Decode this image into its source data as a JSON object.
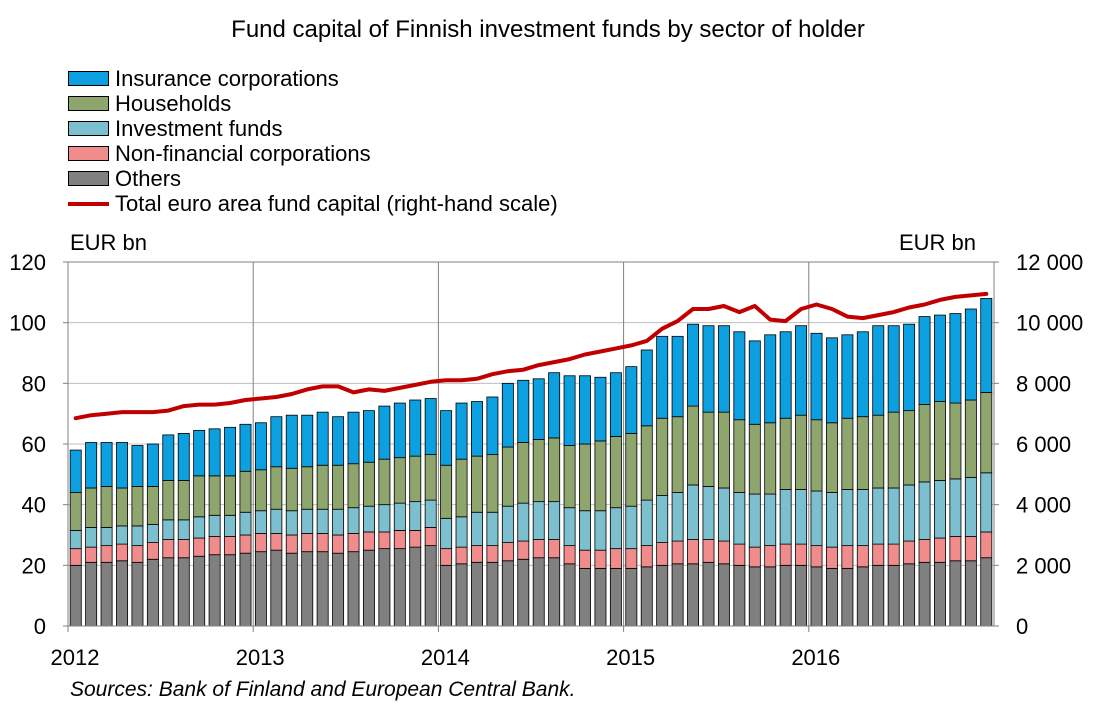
{
  "chart_data": {
    "type": "bar",
    "stacked": true,
    "title": "Fund capital of Finnish investment funds by sector of holder",
    "ylabel_left": "EUR bn",
    "ylabel_right": "EUR bn",
    "ylim_left": [
      0,
      120
    ],
    "ylim_right": [
      0,
      12000
    ],
    "yticks_left": [
      "0",
      "20",
      "40",
      "60",
      "80",
      "100",
      "120"
    ],
    "yticks_right": [
      "0",
      "2 000",
      "4 000",
      "6 000",
      "8 000",
      "10 000",
      "12 000"
    ],
    "xticks": [
      "2012",
      "2013",
      "2014",
      "2015",
      "2016"
    ],
    "grid": true,
    "legend_position": "top-left",
    "source": "Sources: Bank of Finland and European Central Bank.",
    "colors": {
      "Others": "#808080",
      "Non-financial corporations": "#f08c8c",
      "Investment funds": "#7cc0d0",
      "Households": "#8ea66e",
      "Insurance corporations": "#0ca0e0",
      "Total euro area fund capital (right-hand scale)": "#c00000"
    },
    "legend": [
      {
        "label": "Insurance corporations",
        "key": "Insurance corporations",
        "kind": "box"
      },
      {
        "label": "Households",
        "key": "Households",
        "kind": "box"
      },
      {
        "label": "Investment funds",
        "key": "Investment funds",
        "kind": "box"
      },
      {
        "label": "Non-financial corporations",
        "key": "Non-financial corporations",
        "kind": "box"
      },
      {
        "label": "Others",
        "key": "Others",
        "kind": "box"
      },
      {
        "label": "Total euro area fund capital (right-hand scale)",
        "key": "Total euro area fund capital (right-hand scale)",
        "kind": "line"
      }
    ],
    "x": [
      "2012-01",
      "2012-02",
      "2012-03",
      "2012-04",
      "2012-05",
      "2012-06",
      "2012-07",
      "2012-08",
      "2012-09",
      "2012-10",
      "2012-11",
      "2012-12",
      "2013-01",
      "2013-02",
      "2013-03",
      "2013-04",
      "2013-05",
      "2013-06",
      "2013-07",
      "2013-08",
      "2013-09",
      "2013-10",
      "2013-11",
      "2013-12",
      "2014-01",
      "2014-02",
      "2014-03",
      "2014-04",
      "2014-05",
      "2014-06",
      "2014-07",
      "2014-08",
      "2014-09",
      "2014-10",
      "2014-11",
      "2014-12",
      "2015-01",
      "2015-02",
      "2015-03",
      "2015-04",
      "2015-05",
      "2015-06",
      "2015-07",
      "2015-08",
      "2015-09",
      "2015-10",
      "2015-11",
      "2015-12",
      "2016-01",
      "2016-02",
      "2016-03",
      "2016-04",
      "2016-05",
      "2016-06",
      "2016-07",
      "2016-08",
      "2016-09",
      "2016-10",
      "2016-11",
      "2016-12"
    ],
    "series": [
      {
        "name": "Others",
        "values": [
          20,
          21,
          21,
          21.5,
          21,
          22,
          22.5,
          22.5,
          23,
          23.5,
          23.5,
          24,
          24.5,
          25,
          24,
          24.5,
          24.5,
          24,
          24.5,
          25,
          25.5,
          25.5,
          26,
          26.5,
          20,
          20.5,
          21,
          21,
          21.5,
          22,
          22.5,
          22.5,
          20.5,
          19,
          19,
          19,
          19,
          19.5,
          20,
          20.5,
          20.5,
          21,
          20.5,
          20,
          19.5,
          19.5,
          20,
          20,
          19.5,
          19,
          19,
          19.5,
          20,
          20,
          20.5,
          21,
          21,
          21.5,
          21.5,
          22.5
        ]
      },
      {
        "name": "Non-financial corporations",
        "values": [
          5.5,
          5,
          5.5,
          5.5,
          5.5,
          5.5,
          6,
          6,
          6,
          6,
          6,
          6,
          6,
          5.5,
          6,
          6,
          6,
          6,
          6,
          6,
          5.5,
          6,
          5.5,
          6,
          5.5,
          5.5,
          5.5,
          5.5,
          6,
          6,
          6,
          6,
          6,
          6,
          6,
          6.5,
          6.5,
          7,
          7.5,
          7.5,
          8,
          7.5,
          7.5,
          7,
          6.5,
          7,
          7,
          7,
          7,
          7,
          7.5,
          7,
          7,
          7,
          7.5,
          7.5,
          8,
          8,
          8,
          8.5
        ]
      },
      {
        "name": "Investment funds",
        "values": [
          6,
          6.5,
          6,
          6,
          6.5,
          6,
          6.5,
          6.5,
          7,
          7,
          7,
          7.5,
          7.5,
          8,
          8,
          8,
          8,
          8.5,
          8.5,
          8.5,
          9,
          9,
          9.5,
          9,
          10,
          10,
          11,
          11,
          12,
          12.5,
          12.5,
          12.5,
          12.5,
          13,
          13,
          13.5,
          14,
          15,
          15.5,
          16,
          18,
          17.5,
          17.5,
          17,
          17.5,
          17,
          18,
          18,
          18,
          18,
          18.5,
          18.5,
          18.5,
          18.5,
          18.5,
          19,
          19,
          19,
          19.5,
          19.5
        ]
      },
      {
        "name": "Households",
        "values": [
          12.5,
          13,
          13.5,
          12.5,
          13,
          12.5,
          13,
          13,
          13.5,
          13,
          13,
          13.5,
          13.5,
          14,
          14,
          14,
          14.5,
          14.5,
          14.5,
          14.5,
          15,
          15,
          15,
          15,
          17.5,
          19,
          18.5,
          19,
          19.5,
          20,
          20.5,
          21,
          20.5,
          22,
          23,
          23.5,
          24,
          24.5,
          25.5,
          25,
          26,
          24.5,
          25,
          24,
          23,
          23.5,
          23.5,
          24.5,
          23.5,
          23,
          23.5,
          24,
          24,
          25,
          24.5,
          25.5,
          26,
          25,
          25.5,
          26.5
        ]
      },
      {
        "name": "Insurance corporations",
        "values": [
          14,
          15,
          14.5,
          15,
          13.5,
          14,
          15,
          15.5,
          15,
          15.5,
          16,
          15.5,
          15.5,
          16.5,
          17.5,
          17,
          17.5,
          16,
          17,
          17,
          17.5,
          18,
          18.5,
          18.5,
          18,
          18.5,
          18,
          19,
          21,
          20.5,
          20,
          21.5,
          23,
          22.5,
          21,
          21,
          22,
          25,
          27,
          26.5,
          27,
          28.5,
          28.5,
          29,
          27.5,
          29,
          28.5,
          29.5,
          28.5,
          28,
          27.5,
          28,
          29.5,
          28.5,
          28.5,
          29,
          28.5,
          29.5,
          30,
          31
        ]
      },
      {
        "name": "Total euro area fund capital (right-hand scale)",
        "axis": "right",
        "kind": "line",
        "values": [
          6850,
          6950,
          7000,
          7050,
          7050,
          7050,
          7100,
          7250,
          7300,
          7300,
          7350,
          7450,
          7500,
          7550,
          7650,
          7800,
          7900,
          7900,
          7700,
          7800,
          7750,
          7850,
          7950,
          8050,
          8100,
          8100,
          8150,
          8300,
          8400,
          8450,
          8600,
          8700,
          8800,
          8950,
          9050,
          9150,
          9250,
          9400,
          9800,
          10050,
          10450,
          10450,
          10550,
          10350,
          10550,
          10100,
          10050,
          10450,
          10600,
          10450,
          10200,
          10150,
          10250,
          10350,
          10500,
          10600,
          10750,
          10850,
          10900,
          10950
        ]
      }
    ]
  }
}
